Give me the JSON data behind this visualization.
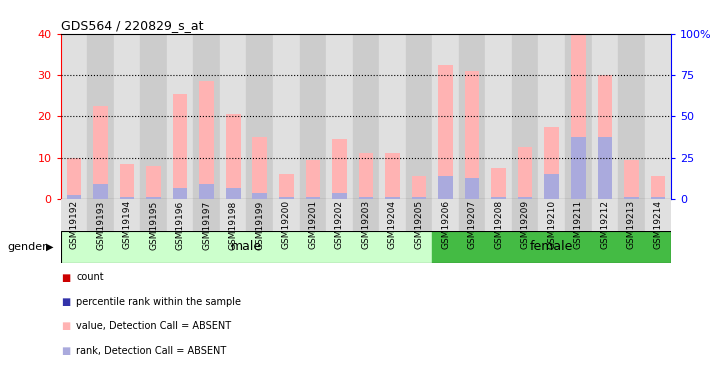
{
  "title": "GDS564 / 220829_s_at",
  "samples": [
    "GSM19192",
    "GSM19193",
    "GSM19194",
    "GSM19195",
    "GSM19196",
    "GSM19197",
    "GSM19198",
    "GSM19199",
    "GSM19200",
    "GSM19201",
    "GSM19202",
    "GSM19203",
    "GSM19204",
    "GSM19205",
    "GSM19206",
    "GSM19207",
    "GSM19208",
    "GSM19209",
    "GSM19210",
    "GSM19211",
    "GSM19212",
    "GSM19213",
    "GSM19214"
  ],
  "pink_values": [
    10,
    22.5,
    8.5,
    8,
    25.5,
    28.5,
    20.5,
    15,
    6,
    9.5,
    14.5,
    11,
    11,
    5.5,
    32.5,
    31,
    7.5,
    12.5,
    17.5,
    40,
    30,
    9.5,
    5.5
  ],
  "blue_values": [
    1,
    3.5,
    0.5,
    0.5,
    2.5,
    3.5,
    2.5,
    1.5,
    0.5,
    0.5,
    1.5,
    0.5,
    0.5,
    0.5,
    5.5,
    5,
    0.5,
    0.5,
    6,
    15,
    15,
    0.5,
    0.5
  ],
  "red_values": [
    0,
    0,
    0,
    0,
    0,
    0,
    0,
    0,
    0,
    0,
    0,
    0,
    0,
    0,
    0,
    0,
    0,
    0,
    0,
    0,
    0,
    0,
    0
  ],
  "gender_male_count": 14,
  "left_ylim": [
    0,
    40
  ],
  "left_yticks": [
    0,
    10,
    20,
    30,
    40
  ],
  "right_ylim": [
    0,
    100
  ],
  "right_yticks": [
    0,
    25,
    50,
    75,
    100
  ],
  "pink_color": "#FFB3B3",
  "blue_color": "#AAAADD",
  "red_color": "#CC0000",
  "dark_red_color": "#CC0000",
  "blue_legend_color": "#3333AA",
  "male_bg": "#CCFFCC",
  "female_bg": "#44BB44",
  "col_bg_even": "#E0E0E0",
  "col_bg_odd": "#CCCCCC",
  "bar_width": 0.55,
  "grid_dotted_color": "black",
  "legend_items": [
    {
      "color": "#CC0000",
      "label": "count"
    },
    {
      "color": "#3333AA",
      "label": "percentile rank within the sample"
    },
    {
      "color": "#FFB3B3",
      "label": "value, Detection Call = ABSENT"
    },
    {
      "color": "#AAAADD",
      "label": "rank, Detection Call = ABSENT"
    }
  ]
}
